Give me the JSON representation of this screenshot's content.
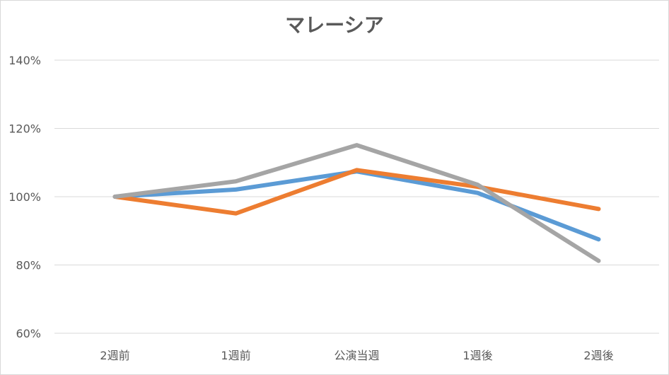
{
  "chart_data": {
    "type": "line",
    "title": "マレーシア",
    "xlabel": "",
    "ylabel": "",
    "categories": [
      "2週前",
      "1週前",
      "公演当週",
      "1週後",
      "2週後"
    ],
    "ylim": [
      60,
      140
    ],
    "yticks": [
      60,
      80,
      100,
      120,
      140
    ],
    "ytick_labels": [
      "60%",
      "80%",
      "100%",
      "120%",
      "140%"
    ],
    "grid": true,
    "legend": "none",
    "series": [
      {
        "color": "#5B9BD5",
        "values": [
          100,
          102.1,
          107.4,
          101.1,
          87.5
        ]
      },
      {
        "color": "#ED7D31",
        "values": [
          100,
          95.1,
          107.8,
          102.9,
          96.4
        ]
      },
      {
        "color": "#A5A5A5",
        "values": [
          100,
          104.5,
          115.1,
          103.5,
          81.2
        ]
      }
    ]
  }
}
